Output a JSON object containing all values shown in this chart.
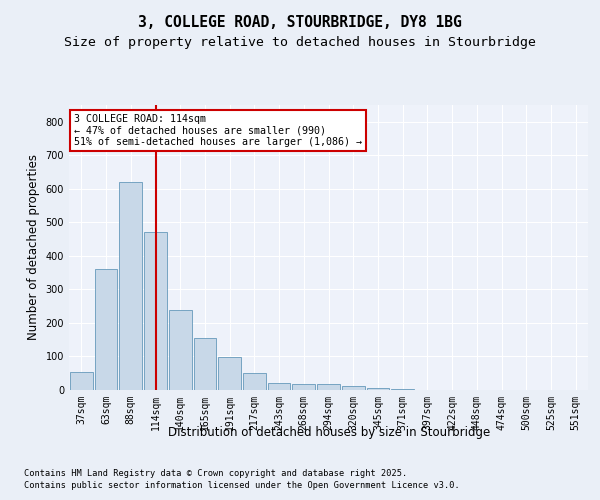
{
  "title1": "3, COLLEGE ROAD, STOURBRIDGE, DY8 1BG",
  "title2": "Size of property relative to detached houses in Stourbridge",
  "xlabel": "Distribution of detached houses by size in Stourbridge",
  "ylabel": "Number of detached properties",
  "categories": [
    "37sqm",
    "63sqm",
    "88sqm",
    "114sqm",
    "140sqm",
    "165sqm",
    "191sqm",
    "217sqm",
    "243sqm",
    "268sqm",
    "294sqm",
    "320sqm",
    "345sqm",
    "371sqm",
    "397sqm",
    "422sqm",
    "448sqm",
    "474sqm",
    "500sqm",
    "525sqm",
    "551sqm"
  ],
  "values": [
    55,
    360,
    620,
    470,
    240,
    155,
    97,
    50,
    22,
    18,
    18,
    13,
    5,
    2,
    1,
    1,
    0,
    0,
    0,
    0,
    0
  ],
  "bar_color": "#c8d8e8",
  "bar_edge_color": "#6699bb",
  "vline_x_index": 3,
  "vline_color": "#cc0000",
  "annotation_line1": "3 COLLEGE ROAD: 114sqm",
  "annotation_line2": "← 47% of detached houses are smaller (990)",
  "annotation_line3": "51% of semi-detached houses are larger (1,086) →",
  "annotation_box_color": "#ffffff",
  "annotation_box_edge": "#cc0000",
  "ylim": [
    0,
    850
  ],
  "yticks": [
    0,
    100,
    200,
    300,
    400,
    500,
    600,
    700,
    800
  ],
  "bg_color": "#eaeff7",
  "plot_bg_color": "#eef2fa",
  "footer1": "Contains HM Land Registry data © Crown copyright and database right 2025.",
  "footer2": "Contains public sector information licensed under the Open Government Licence v3.0.",
  "title_fontsize": 10.5,
  "subtitle_fontsize": 9.5,
  "tick_fontsize": 7,
  "label_fontsize": 8.5,
  "footer_fontsize": 6.2
}
